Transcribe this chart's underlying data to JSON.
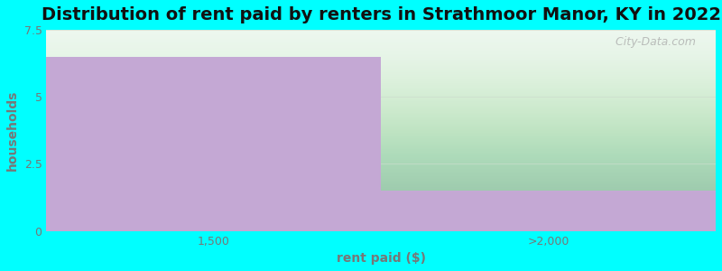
{
  "title": "Distribution of rent paid by renters in Strathmoor Manor, KY in 2022",
  "xlabel": "rent paid ($)",
  "ylabel": "households",
  "categories": [
    "1,500",
    ">2,000"
  ],
  "values": [
    6.5,
    1.5
  ],
  "bar_color": "#C4A8D4",
  "ylim": [
    0,
    7.5
  ],
  "yticks": [
    0,
    2.5,
    5,
    7.5
  ],
  "background_color": "#00FFFF",
  "plot_bg_color": "#E8F5EC",
  "title_fontsize": 14,
  "axis_label_fontsize": 10,
  "tick_fontsize": 9,
  "tick_color": "#777777",
  "watermark": "  City-Data.com"
}
